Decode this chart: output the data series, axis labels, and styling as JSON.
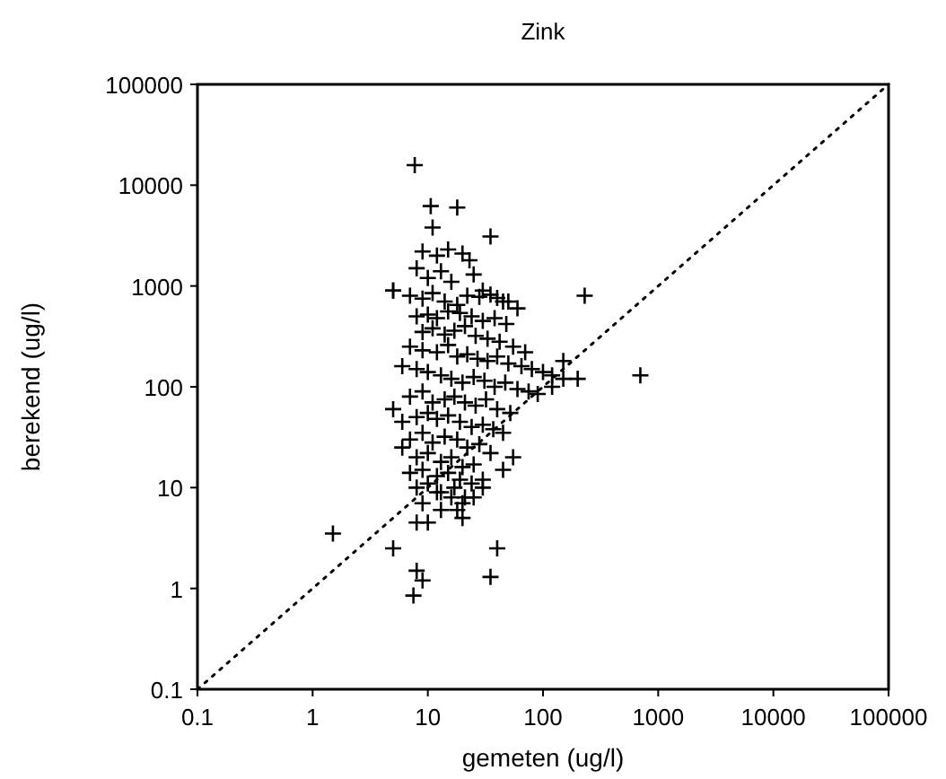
{
  "chart_data": {
    "type": "scatter",
    "title": "Zink",
    "xlabel": "gemeten (ug/l)",
    "ylabel": "berekend (ug/l)",
    "log": "xy",
    "grid": false,
    "marker": "cross",
    "xlim": [
      0.1,
      100000
    ],
    "ylim": [
      0.1,
      100000
    ],
    "xticks": [
      0.1,
      1,
      10,
      100,
      1000,
      10000,
      100000
    ],
    "yticks": [
      0.1,
      1,
      10,
      100,
      1000,
      10000,
      100000
    ],
    "series": [
      {
        "color": "#000000",
        "x": [
          7.7,
          10.6,
          18,
          11,
          35,
          9,
          12,
          15,
          20,
          23,
          8,
          10,
          13,
          16,
          25,
          30,
          45,
          5,
          7,
          9,
          11,
          14,
          18,
          22,
          28,
          35,
          40,
          50,
          60,
          8,
          10,
          12,
          15,
          19,
          24,
          30,
          38,
          48,
          9,
          11,
          14,
          17,
          21,
          26,
          33,
          42,
          55,
          70,
          7,
          9,
          12,
          15,
          18,
          22,
          27,
          33,
          40,
          50,
          65,
          80,
          100,
          120,
          150,
          6,
          8,
          10,
          13,
          16,
          20,
          25,
          31,
          38,
          47,
          60,
          75,
          90,
          5,
          7,
          9,
          11,
          14,
          17,
          21,
          26,
          32,
          40,
          52,
          6,
          8,
          10,
          12,
          15,
          19,
          24,
          30,
          37,
          45,
          7,
          9,
          11,
          14,
          18,
          22,
          28,
          35,
          6,
          8,
          10,
          13,
          16,
          20,
          25,
          7,
          9,
          12,
          15,
          19,
          24,
          30,
          8,
          10,
          13,
          17,
          21,
          9,
          12,
          16,
          20,
          700,
          230,
          120,
          150,
          200,
          1.5,
          5,
          5,
          7.5,
          8,
          9,
          35,
          40,
          8,
          10,
          20,
          18,
          13,
          25,
          30,
          45,
          55
        ],
        "values": [
          15800,
          6200,
          6000,
          3800,
          3100,
          2200,
          2000,
          2300,
          2100,
          1800,
          1500,
          1200,
          1400,
          1100,
          1300,
          900,
          700,
          900,
          800,
          750,
          850,
          700,
          650,
          800,
          780,
          820,
          760,
          700,
          600,
          500,
          520,
          480,
          560,
          540,
          500,
          450,
          480,
          420,
          350,
          380,
          330,
          360,
          400,
          320,
          300,
          280,
          250,
          220,
          250,
          230,
          220,
          260,
          200,
          210,
          190,
          180,
          200,
          170,
          160,
          150,
          140,
          130,
          120,
          160,
          150,
          140,
          130,
          120,
          110,
          125,
          115,
          100,
          110,
          95,
          90,
          85,
          60,
          80,
          90,
          70,
          75,
          80,
          70,
          65,
          75,
          60,
          55,
          45,
          50,
          55,
          48,
          52,
          45,
          40,
          42,
          38,
          35,
          30,
          35,
          28,
          32,
          30,
          25,
          27,
          22,
          25,
          20,
          22,
          18,
          20,
          16,
          17,
          14,
          15,
          13,
          14,
          12,
          11,
          12,
          10,
          11,
          9,
          10,
          8,
          7,
          9,
          8,
          7,
          130,
          800,
          100,
          180,
          120,
          3.5,
          2.5,
          900,
          0.85,
          1.5,
          1.2,
          1.3,
          2.5,
          4.5,
          4.5,
          5,
          6,
          6,
          8,
          10,
          15,
          20
        ]
      },
      {
        "type": "line",
        "color": "#000000",
        "line_style": "dotted",
        "marker": "none",
        "x": [
          0.1,
          100000
        ],
        "values": [
          0.1,
          100000
        ]
      }
    ]
  }
}
